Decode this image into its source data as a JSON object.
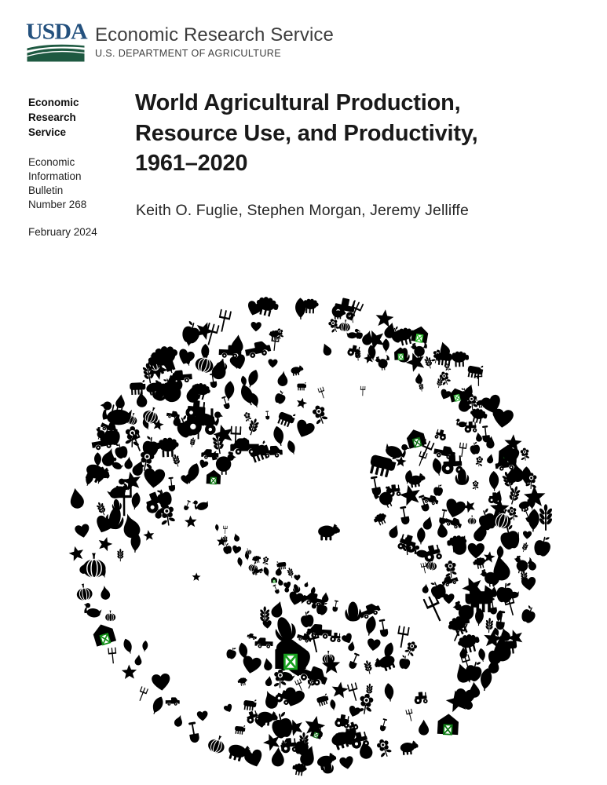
{
  "header": {
    "logo": {
      "acronym": "USDA",
      "text_color": "#24517e",
      "swoosh_color": "#1e5941"
    },
    "agency": "Economic Research Service",
    "department": "U.S. DEPARTMENT OF AGRICULTURE"
  },
  "sidebar": {
    "series_name_lines": [
      "Economic",
      "Research",
      "Service"
    ],
    "bulletin_lines": [
      "Economic",
      "Information",
      "Bulletin",
      "Number 268"
    ],
    "date": "February 2024"
  },
  "main": {
    "title_lines": [
      "World Agricultural Production,",
      "Resource Use, and Productivity,",
      "1961–2020"
    ],
    "authors": "Keith O. Fuglie, Stephen Morgan, Jeremy Jelliffe"
  },
  "illustration": {
    "description": "Globe of Earth composed of small green agriculture icons; continents and outer ring are mosaics of farm animals, crops, produce and farm equipment",
    "palette": [
      "#0c7a12",
      "#119e19",
      "#23b92b",
      "#0a6b10",
      "#1a8f20",
      "#2eb135",
      "#15a81c",
      "#0e8c13",
      "#31bd2e"
    ],
    "icon_names": [
      "leaf-icon",
      "droplet-icon",
      "heart-icon",
      "star-icon",
      "apple-icon",
      "pear-icon",
      "tractor-icon",
      "barn-icon",
      "pig-icon",
      "sheep-icon",
      "cow-icon",
      "chicken-icon",
      "wheat-icon",
      "corn-icon",
      "pumpkin-icon",
      "flower-icon",
      "pitchfork-icon",
      "shovel-icon",
      "pickup-icon",
      "duck-icon"
    ]
  }
}
